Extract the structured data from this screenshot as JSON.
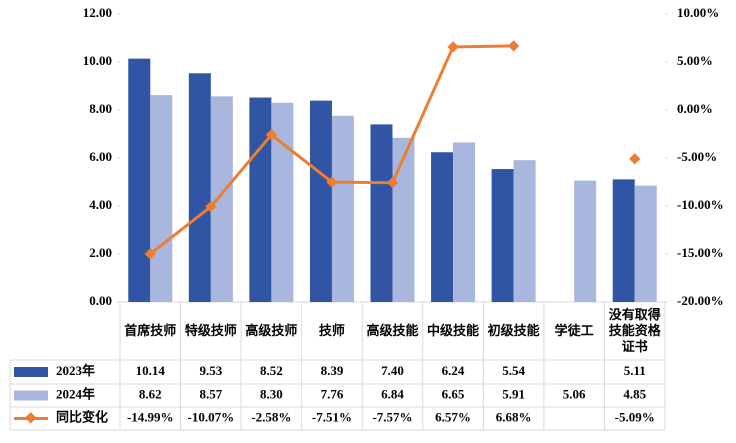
{
  "chart_data": {
    "type": "bar",
    "categories": [
      "首席技师",
      "特级技师",
      "高级技师",
      "技师",
      "高级技能",
      "中级技能",
      "初级技能",
      "学徒工",
      "没有取得技能资格证书"
    ],
    "series": [
      {
        "name": "2023年",
        "type": "bar",
        "color": "#2f55a4",
        "values": [
          10.14,
          9.53,
          8.52,
          8.39,
          7.4,
          6.24,
          5.54,
          null,
          5.11
        ],
        "value_labels": [
          "10.14",
          "9.53",
          "8.52",
          "8.39",
          "7.40",
          "6.24",
          "5.54",
          null,
          "5.11"
        ]
      },
      {
        "name": "2024年",
        "type": "bar",
        "color": "#a9b6de",
        "values": [
          8.62,
          8.57,
          8.3,
          7.76,
          6.84,
          6.65,
          5.91,
          5.06,
          4.85
        ],
        "value_labels": [
          "8.62",
          "8.57",
          "8.30",
          "7.76",
          "6.84",
          "6.65",
          "5.91",
          "5.06",
          "4.85"
        ]
      },
      {
        "name": "同比变化",
        "type": "line",
        "axis": "y2",
        "color": "#ed7d31",
        "values": [
          -14.99,
          -10.07,
          -2.58,
          -7.51,
          -7.57,
          6.57,
          6.68,
          null,
          -5.09
        ],
        "value_labels": [
          "-14.99%",
          "-10.07%",
          "-2.58%",
          "-7.51%",
          "-7.57%",
          "6.57%",
          "6.68%",
          null,
          "-5.09%"
        ]
      }
    ],
    "ylim": [
      0,
      12
    ],
    "yticks": [
      {
        "value": 0,
        "label": "0.00"
      },
      {
        "value": 2,
        "label": "2.00"
      },
      {
        "value": 4,
        "label": "4.00"
      },
      {
        "value": 6,
        "label": "6.00"
      },
      {
        "value": 8,
        "label": "8.00"
      },
      {
        "value": 10,
        "label": "10.00"
      },
      {
        "value": 12,
        "label": "12.00"
      }
    ],
    "y2lim": [
      -20,
      10
    ],
    "y2ticks": [
      {
        "value": -20,
        "label": "-20.00%"
      },
      {
        "value": -15,
        "label": "-15.00%"
      },
      {
        "value": -10,
        "label": "-10.00%"
      },
      {
        "value": -5,
        "label": "-5.00%"
      },
      {
        "value": 0,
        "label": "0.00%"
      },
      {
        "value": 5,
        "label": "5.00%"
      },
      {
        "value": 10,
        "label": "10.00%"
      }
    ],
    "data_table": true
  }
}
